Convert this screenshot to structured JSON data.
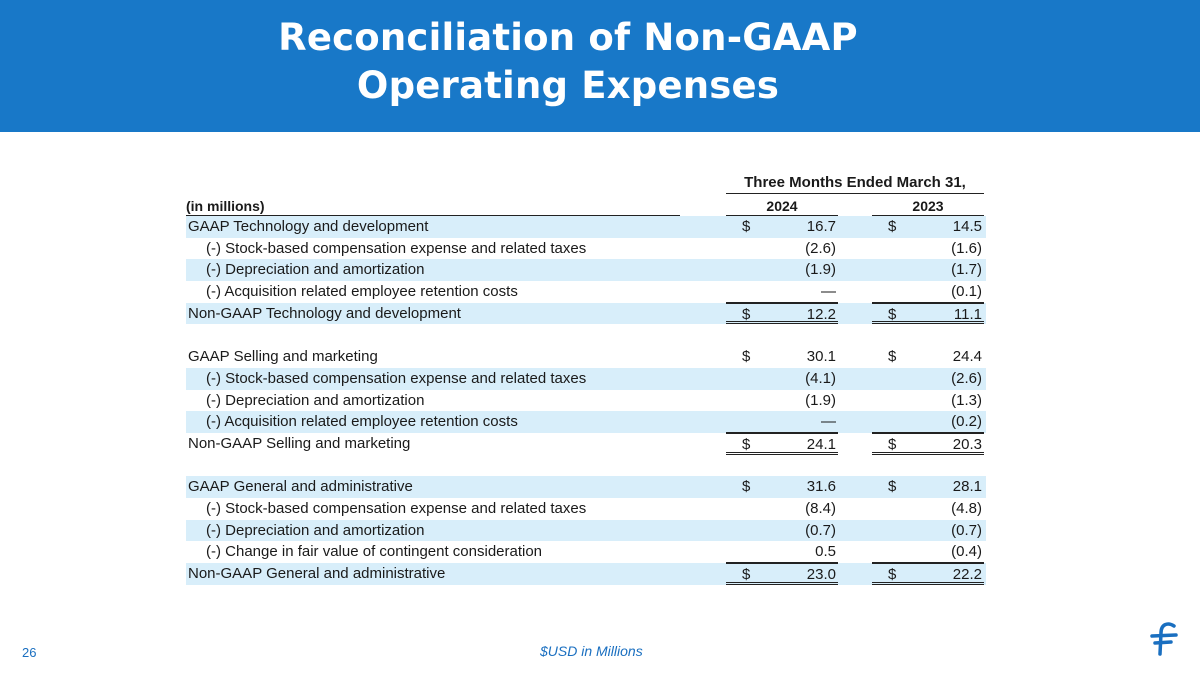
{
  "header": {
    "title_line1": "Reconciliation of Non-GAAP",
    "title_line2": "Operating Expenses"
  },
  "table": {
    "period_label": "Three Months Ended March 31,",
    "units_label": "(in millions)",
    "years": [
      "2024",
      "2023"
    ],
    "currency_symbol": "$",
    "sections": [
      {
        "rows": [
          {
            "label": "GAAP Technology and development",
            "v2024": "16.7",
            "v2023": "14.5"
          },
          {
            "label": "(-) Stock-based compensation expense and related taxes",
            "v2024": "(2.6)",
            "v2023": "(1.6)"
          },
          {
            "label": "(-) Depreciation and amortization",
            "v2024": "(1.9)",
            "v2023": "(1.7)"
          },
          {
            "label": "(-) Acquisition related employee retention costs",
            "v2024": "—",
            "v2023": "(0.1)"
          },
          {
            "label": "Non-GAAP Technology and development",
            "v2024": "12.2",
            "v2023": "11.1"
          }
        ]
      },
      {
        "rows": [
          {
            "label": "GAAP Selling and marketing",
            "v2024": "30.1",
            "v2023": "24.4"
          },
          {
            "label": "(-) Stock-based compensation expense and related taxes",
            "v2024": "(4.1)",
            "v2023": "(2.6)"
          },
          {
            "label": "(-) Depreciation and amortization",
            "v2024": "(1.9)",
            "v2023": "(1.3)"
          },
          {
            "label": "(-) Acquisition related employee retention costs",
            "v2024": "—",
            "v2023": "(0.2)"
          },
          {
            "label": "Non-GAAP Selling and marketing",
            "v2024": "24.1",
            "v2023": "20.3"
          }
        ]
      },
      {
        "rows": [
          {
            "label": "GAAP General and administrative",
            "v2024": "31.6",
            "v2023": "28.1"
          },
          {
            "label": "(-) Stock-based compensation expense and related taxes",
            "v2024": "(8.4)",
            "v2023": "(4.8)"
          },
          {
            "label": "(-) Depreciation and amortization",
            "v2024": "(0.7)",
            "v2023": "(0.7)"
          },
          {
            "label": "(-) Change in fair value of contingent consideration",
            "v2024": "0.5",
            "v2023": "(0.4)"
          },
          {
            "label": "Non-GAAP General and administrative",
            "v2024": "23.0",
            "v2023": "22.2"
          }
        ]
      }
    ]
  },
  "footer": {
    "page_number": "26",
    "note": "$USD in Millions",
    "logo_icon": "brand-f-logo-icon"
  },
  "colors": {
    "header_bg": "#1878c8",
    "row_shade": "#d8eefa",
    "footer_text": "#1a6fc0"
  }
}
